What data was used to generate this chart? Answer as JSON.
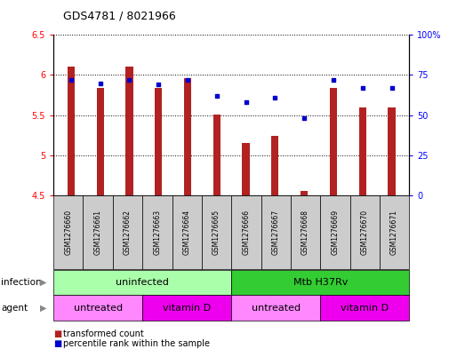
{
  "title": "GDS4781 / 8021966",
  "samples": [
    "GSM1276660",
    "GSM1276661",
    "GSM1276662",
    "GSM1276663",
    "GSM1276664",
    "GSM1276665",
    "GSM1276666",
    "GSM1276667",
    "GSM1276668",
    "GSM1276669",
    "GSM1276670",
    "GSM1276671"
  ],
  "bar_values": [
    6.11,
    5.84,
    6.1,
    5.84,
    5.96,
    5.51,
    5.15,
    5.24,
    4.56,
    5.84,
    5.6,
    5.6
  ],
  "bar_bottom": 4.5,
  "percentile_values": [
    72,
    70,
    72,
    69,
    72,
    62,
    58,
    61,
    48,
    72,
    67,
    67
  ],
  "bar_color": "#B22222",
  "percentile_color": "#0000CD",
  "ylim_left": [
    4.5,
    6.5
  ],
  "ylim_right": [
    0,
    100
  ],
  "ytick_labels_left": [
    "4.5",
    "5",
    "5.5",
    "6",
    "6.5"
  ],
  "ytick_labels_right": [
    "0",
    "25",
    "50",
    "75",
    "100%"
  ],
  "infection_groups": [
    {
      "label": "uninfected",
      "start": 0,
      "end": 6,
      "color": "#AAFFAA"
    },
    {
      "label": "Mtb H37Rv",
      "start": 6,
      "end": 12,
      "color": "#33CC33"
    }
  ],
  "agent_groups": [
    {
      "label": "untreated",
      "start": 0,
      "end": 3,
      "color": "#FF88FF"
    },
    {
      "label": "vitamin D",
      "start": 3,
      "end": 6,
      "color": "#EE00EE"
    },
    {
      "label": "untreated",
      "start": 6,
      "end": 9,
      "color": "#FF88FF"
    },
    {
      "label": "vitamin D",
      "start": 9,
      "end": 12,
      "color": "#EE00EE"
    }
  ],
  "infection_label": "infection",
  "agent_label": "agent",
  "legend_bar_label": "transformed count",
  "legend_pct_label": "percentile rank within the sample",
  "background_color": "#FFFFFF"
}
